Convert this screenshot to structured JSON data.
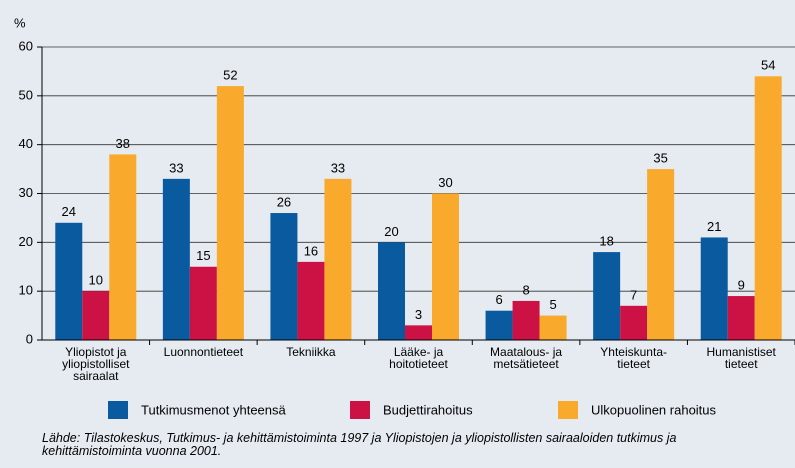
{
  "chart_data": {
    "type": "bar",
    "y_label": "%",
    "categories": [
      "Yliopistot ja\nyliopistolliset\nsairaalat",
      "Luonnontieteet",
      "Tekniikka",
      "Lääke- ja\nhoitotieteet",
      "Maatalous- ja\nmetsätieteet",
      "Yhteiskunta-\ntieteet",
      "Humanistiset\ntieteet"
    ],
    "series": [
      {
        "name": "Tutkimusmenot yhteensä",
        "color": "#0a5aa0",
        "values": [
          24,
          33,
          26,
          20,
          6,
          18,
          21
        ]
      },
      {
        "name": "Budjettirahoitus",
        "color": "#cc1145",
        "values": [
          10,
          15,
          16,
          3,
          8,
          7,
          9
        ]
      },
      {
        "name": "Ulkopuolinen rahoitus",
        "color": "#f9a92b",
        "values": [
          38,
          52,
          33,
          30,
          5,
          35,
          54
        ]
      }
    ],
    "ylim": [
      0,
      60
    ],
    "yticks": [
      0,
      10,
      20,
      30,
      40,
      50,
      60
    ],
    "grid": true,
    "source": "Lähde: Tilastokeskus, Tutkimus- ja kehittämistoiminta 1997 ja Yliopistojen ja yliopistollisten sairaaloiden tutkimus ja\nkehittämistoiminta vuonna 2001."
  }
}
